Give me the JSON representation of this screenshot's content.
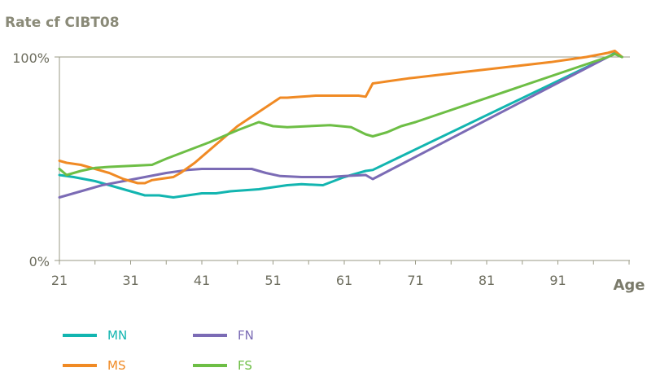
{
  "chart_data": {
    "type": "line",
    "ylabel": "Rate cf CIBT08",
    "xlabel": "Age",
    "x_ticks": [
      "21",
      "31",
      "41",
      "51",
      "61",
      "71",
      "81",
      "91"
    ],
    "y_ticks": [
      "0%",
      "100%"
    ],
    "xlim": [
      21,
      101
    ],
    "ylim": [
      0,
      100
    ],
    "legend_position": "bottom-left",
    "series": [
      {
        "name": "MN",
        "color": "#12b5b0",
        "x": [
          21,
          23,
          26,
          29,
          31,
          33,
          35,
          37,
          39,
          41,
          43,
          45,
          47,
          49,
          51,
          53,
          55,
          58,
          61,
          63,
          64,
          65,
          98,
          99,
          100
        ],
        "y": [
          42,
          41,
          39,
          36,
          34,
          32,
          32,
          31,
          32,
          33,
          33,
          34,
          34.5,
          35,
          36,
          37,
          37.5,
          37,
          41,
          43,
          44,
          44.5,
          100,
          102,
          100
        ]
      },
      {
        "name": "FN",
        "color": "#7b6bb5",
        "x": [
          21,
          24,
          27,
          30,
          33,
          36,
          39,
          41,
          45,
          48,
          50,
          52,
          55,
          59,
          61,
          64,
          65,
          98,
          99,
          100
        ],
        "y": [
          31,
          34,
          37,
          39,
          41,
          43,
          44.5,
          45,
          45,
          45,
          43,
          41.5,
          41,
          41,
          41.5,
          42,
          40,
          100,
          101.5,
          100
        ]
      },
      {
        "name": "MS",
        "color": "#f08a24",
        "x": [
          21,
          22,
          24,
          25,
          28,
          30,
          32,
          33,
          34,
          35,
          37,
          38,
          40,
          43,
          46,
          49,
          52,
          53,
          55,
          57,
          58,
          61,
          63,
          64,
          65,
          66,
          67,
          70,
          75,
          80,
          85,
          90,
          95,
          98,
          99,
          100
        ],
        "y": [
          49,
          48,
          47,
          46,
          43,
          40,
          38,
          38,
          39.5,
          40,
          41,
          43,
          48,
          57,
          66,
          73,
          80,
          80,
          80.5,
          81,
          81,
          81,
          81,
          80.5,
          87,
          87.5,
          88,
          89.5,
          91.5,
          93.5,
          95.5,
          97.5,
          100,
          102,
          103,
          100
        ]
      },
      {
        "name": "FS",
        "color": "#6dbe45",
        "x": [
          21,
          22,
          24,
          26,
          28,
          31,
          34,
          36,
          39,
          42,
          46,
          49,
          51,
          53,
          56,
          59,
          62,
          64,
          65,
          67,
          69,
          71,
          98,
          99,
          100
        ],
        "y": [
          45,
          42,
          44,
          45.5,
          46,
          46.5,
          47,
          50,
          54,
          58,
          64,
          68,
          66,
          65.5,
          66,
          66.5,
          65.5,
          62,
          61,
          63,
          66,
          68,
          100,
          101.5,
          100
        ]
      }
    ]
  }
}
